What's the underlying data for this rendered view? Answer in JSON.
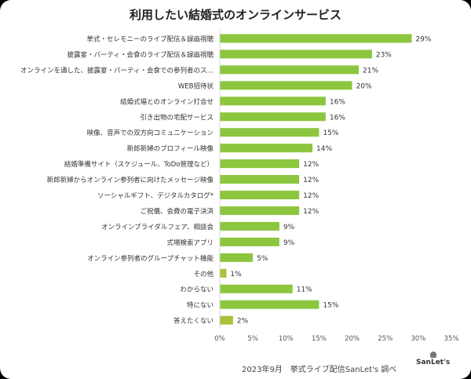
{
  "chart_data": {
    "type": "bar",
    "orientation": "horizontal",
    "title": "利用したい結婚式のオンラインサービス",
    "categories": [
      "挙式・セレモニーのライブ配信＆録画視聴",
      "披露宴・パーティ・会食のライブ配信＆録画視聴",
      "オンラインを通した、披露宴・パーティ・会食での参列者のス…",
      "WEB招待状",
      "結婚式場とのオンライン打合せ",
      "引き出物の宅配サービス",
      "映像、音声での双方向コミュニケーション",
      "新郎新婦のプロフィール映像",
      "結婚準備サイト（スケジュール、ToDo管理など）",
      "新郎新婦からオンライン参列者に向けたメッセージ映像",
      "ソーシャルギフト、デジタルカタログ*",
      "ご祝儀、会費の電子決済",
      "オンラインブライダルフェア、相談会",
      "式場検索アプリ",
      "オンライン参列者のグループチャット機能",
      "その他",
      "わからない",
      "特にない",
      "答えたくない"
    ],
    "values": [
      29,
      23,
      21,
      20,
      16,
      16,
      15,
      14,
      12,
      12,
      12,
      12,
      9,
      9,
      5,
      1,
      11,
      15,
      2
    ],
    "value_labels": [
      "29%",
      "23%",
      "21%",
      "20%",
      "16%",
      "16%",
      "15%",
      "14%",
      "12%",
      "12%",
      "12%",
      "12%",
      "9%",
      "9%",
      "5%",
      "1%",
      "11%",
      "15%",
      "2%"
    ],
    "xlim": [
      0,
      35
    ],
    "xticks": [
      "0%",
      "5%",
      "10%",
      "15%",
      "20%",
      "25%",
      "30%",
      "35%"
    ],
    "grid": false,
    "bar_color": "#8cc63f",
    "bar_color_minor": "#a8c23a"
  },
  "footer": {
    "source": "2023年9月　挙式ライブ配信SanLet's 調べ",
    "logo": "SanLet's"
  }
}
